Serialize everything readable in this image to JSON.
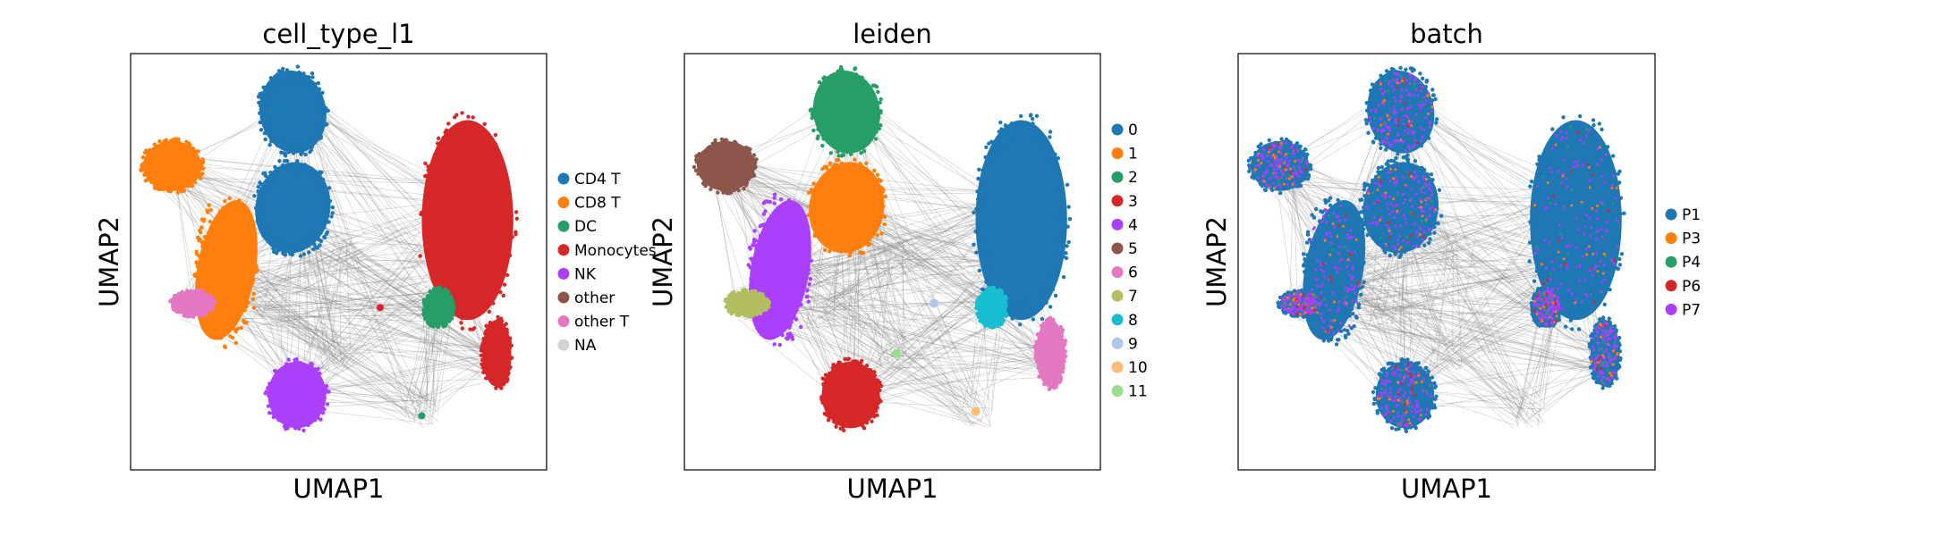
{
  "chart_data": [
    {
      "type": "scatter",
      "title": "cell_type_l1",
      "xlabel": "UMAP1",
      "ylabel": "UMAP2",
      "grid": false,
      "legend_position": "right",
      "series": [
        {
          "name": "CD4 T",
          "color": "#1f77b4"
        },
        {
          "name": "CD8 T",
          "color": "#ff7f0e"
        },
        {
          "name": "DC",
          "color": "#279e68"
        },
        {
          "name": "Monocytes",
          "color": "#d62728"
        },
        {
          "name": "NK",
          "color": "#aa40fc"
        },
        {
          "name": "other",
          "color": "#8c564b"
        },
        {
          "name": "other T",
          "color": "#e377c2"
        },
        {
          "name": "NA",
          "color": "#d3d3d3"
        }
      ]
    },
    {
      "type": "scatter",
      "title": "leiden",
      "xlabel": "UMAP1",
      "ylabel": "UMAP2",
      "grid": false,
      "legend_position": "right",
      "series": [
        {
          "name": "0",
          "color": "#1f77b4"
        },
        {
          "name": "1",
          "color": "#ff7f0e"
        },
        {
          "name": "2",
          "color": "#279e68"
        },
        {
          "name": "3",
          "color": "#d62728"
        },
        {
          "name": "4",
          "color": "#aa40fc"
        },
        {
          "name": "5",
          "color": "#8c564b"
        },
        {
          "name": "6",
          "color": "#e377c2"
        },
        {
          "name": "7",
          "color": "#b5bd61"
        },
        {
          "name": "8",
          "color": "#17becf"
        },
        {
          "name": "9",
          "color": "#aec7e8"
        },
        {
          "name": "10",
          "color": "#ffbb78"
        },
        {
          "name": "11",
          "color": "#98df8a"
        }
      ]
    },
    {
      "type": "scatter",
      "title": "batch",
      "xlabel": "UMAP1",
      "ylabel": "UMAP2",
      "grid": false,
      "legend_position": "right",
      "series": [
        {
          "name": "P1",
          "color": "#1f77b4"
        },
        {
          "name": "P3",
          "color": "#ff7f0e"
        },
        {
          "name": "P4",
          "color": "#279e68"
        },
        {
          "name": "P6",
          "color": "#d62728"
        },
        {
          "name": "P7",
          "color": "#aa40fc"
        }
      ]
    }
  ]
}
